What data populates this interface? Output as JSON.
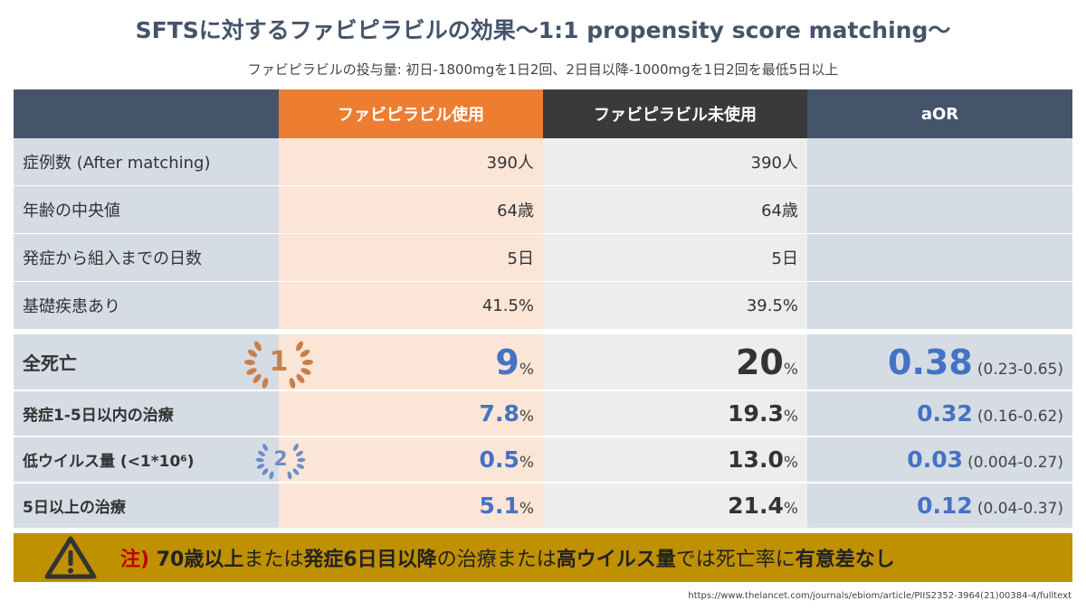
{
  "title": "SFTSに対するファビピラビルの効果〜1:1 propensity score matching〜",
  "subtitle": "ファビピラビルの投与量: 初日-1800mgを1日2回、2日目以降-1000mgを1日2回を最低5日以上",
  "header": {
    "col0": "",
    "col1": "ファビピラビル使用",
    "col2": "ファビピラビル未使用",
    "col3": "aOR"
  },
  "basic_rows": [
    {
      "label": "症例数 (After matching)",
      "used": "390人",
      "unused": "390人"
    },
    {
      "label": "年齢の中央値",
      "used": "64歳",
      "unused": "64歳"
    },
    {
      "label": "発症から組入までの日数",
      "used": "5日",
      "unused": "5日"
    },
    {
      "label": "基礎疾患あり",
      "used": "41.5%",
      "unused": "39.5%"
    }
  ],
  "outcome_rows": [
    {
      "label": "全死亡",
      "used": "9",
      "unused": "20",
      "pct": "%",
      "aor": "0.38",
      "ci": "(0.23-0.65)",
      "badge": "1"
    },
    {
      "label": "発症1-5日以内の治療",
      "used": "7.8",
      "unused": "19.3",
      "pct": "%",
      "aor": "0.32",
      "ci": "(0.16-0.62)"
    },
    {
      "label": "低ウイルス量 (<1*10⁶)",
      "used": "0.5",
      "unused": "13.0",
      "pct": "%",
      "aor": "0.03",
      "ci": "(0.004-0.27)",
      "badge": "2"
    },
    {
      "label": "5日以上の治療",
      "used": "5.1",
      "unused": "21.4",
      "pct": "%",
      "aor": "0.12",
      "ci": "(0.04-0.37)"
    }
  ],
  "warning": {
    "icon": "warning-triangle-icon",
    "note": "注)",
    "seg1": "70歳以上",
    "seg2": "または",
    "seg3": "発症6日目以降",
    "seg4": "の治療または",
    "seg5": "高ウイルス量",
    "seg6": "では死亡率に",
    "seg7": "有意差なし"
  },
  "source_url": "https://www.thelancet.com/journals/ebiom/article/PIIS2352-3964(21)00384-4/fulltext",
  "colors": {
    "header_slate": "#44546a",
    "header_orange": "#ed7d31",
    "header_dark": "#3a3a3a",
    "used_bg": "#fbe5d6",
    "unused_bg": "#ededed",
    "label_bg": "#d6dce4",
    "highlight_blue": "#4472c4",
    "warning_gold": "#bf9000",
    "note_red": "#c00000",
    "badge1_copper": "#c8804a",
    "badge2_blue": "#6b8ec7"
  }
}
